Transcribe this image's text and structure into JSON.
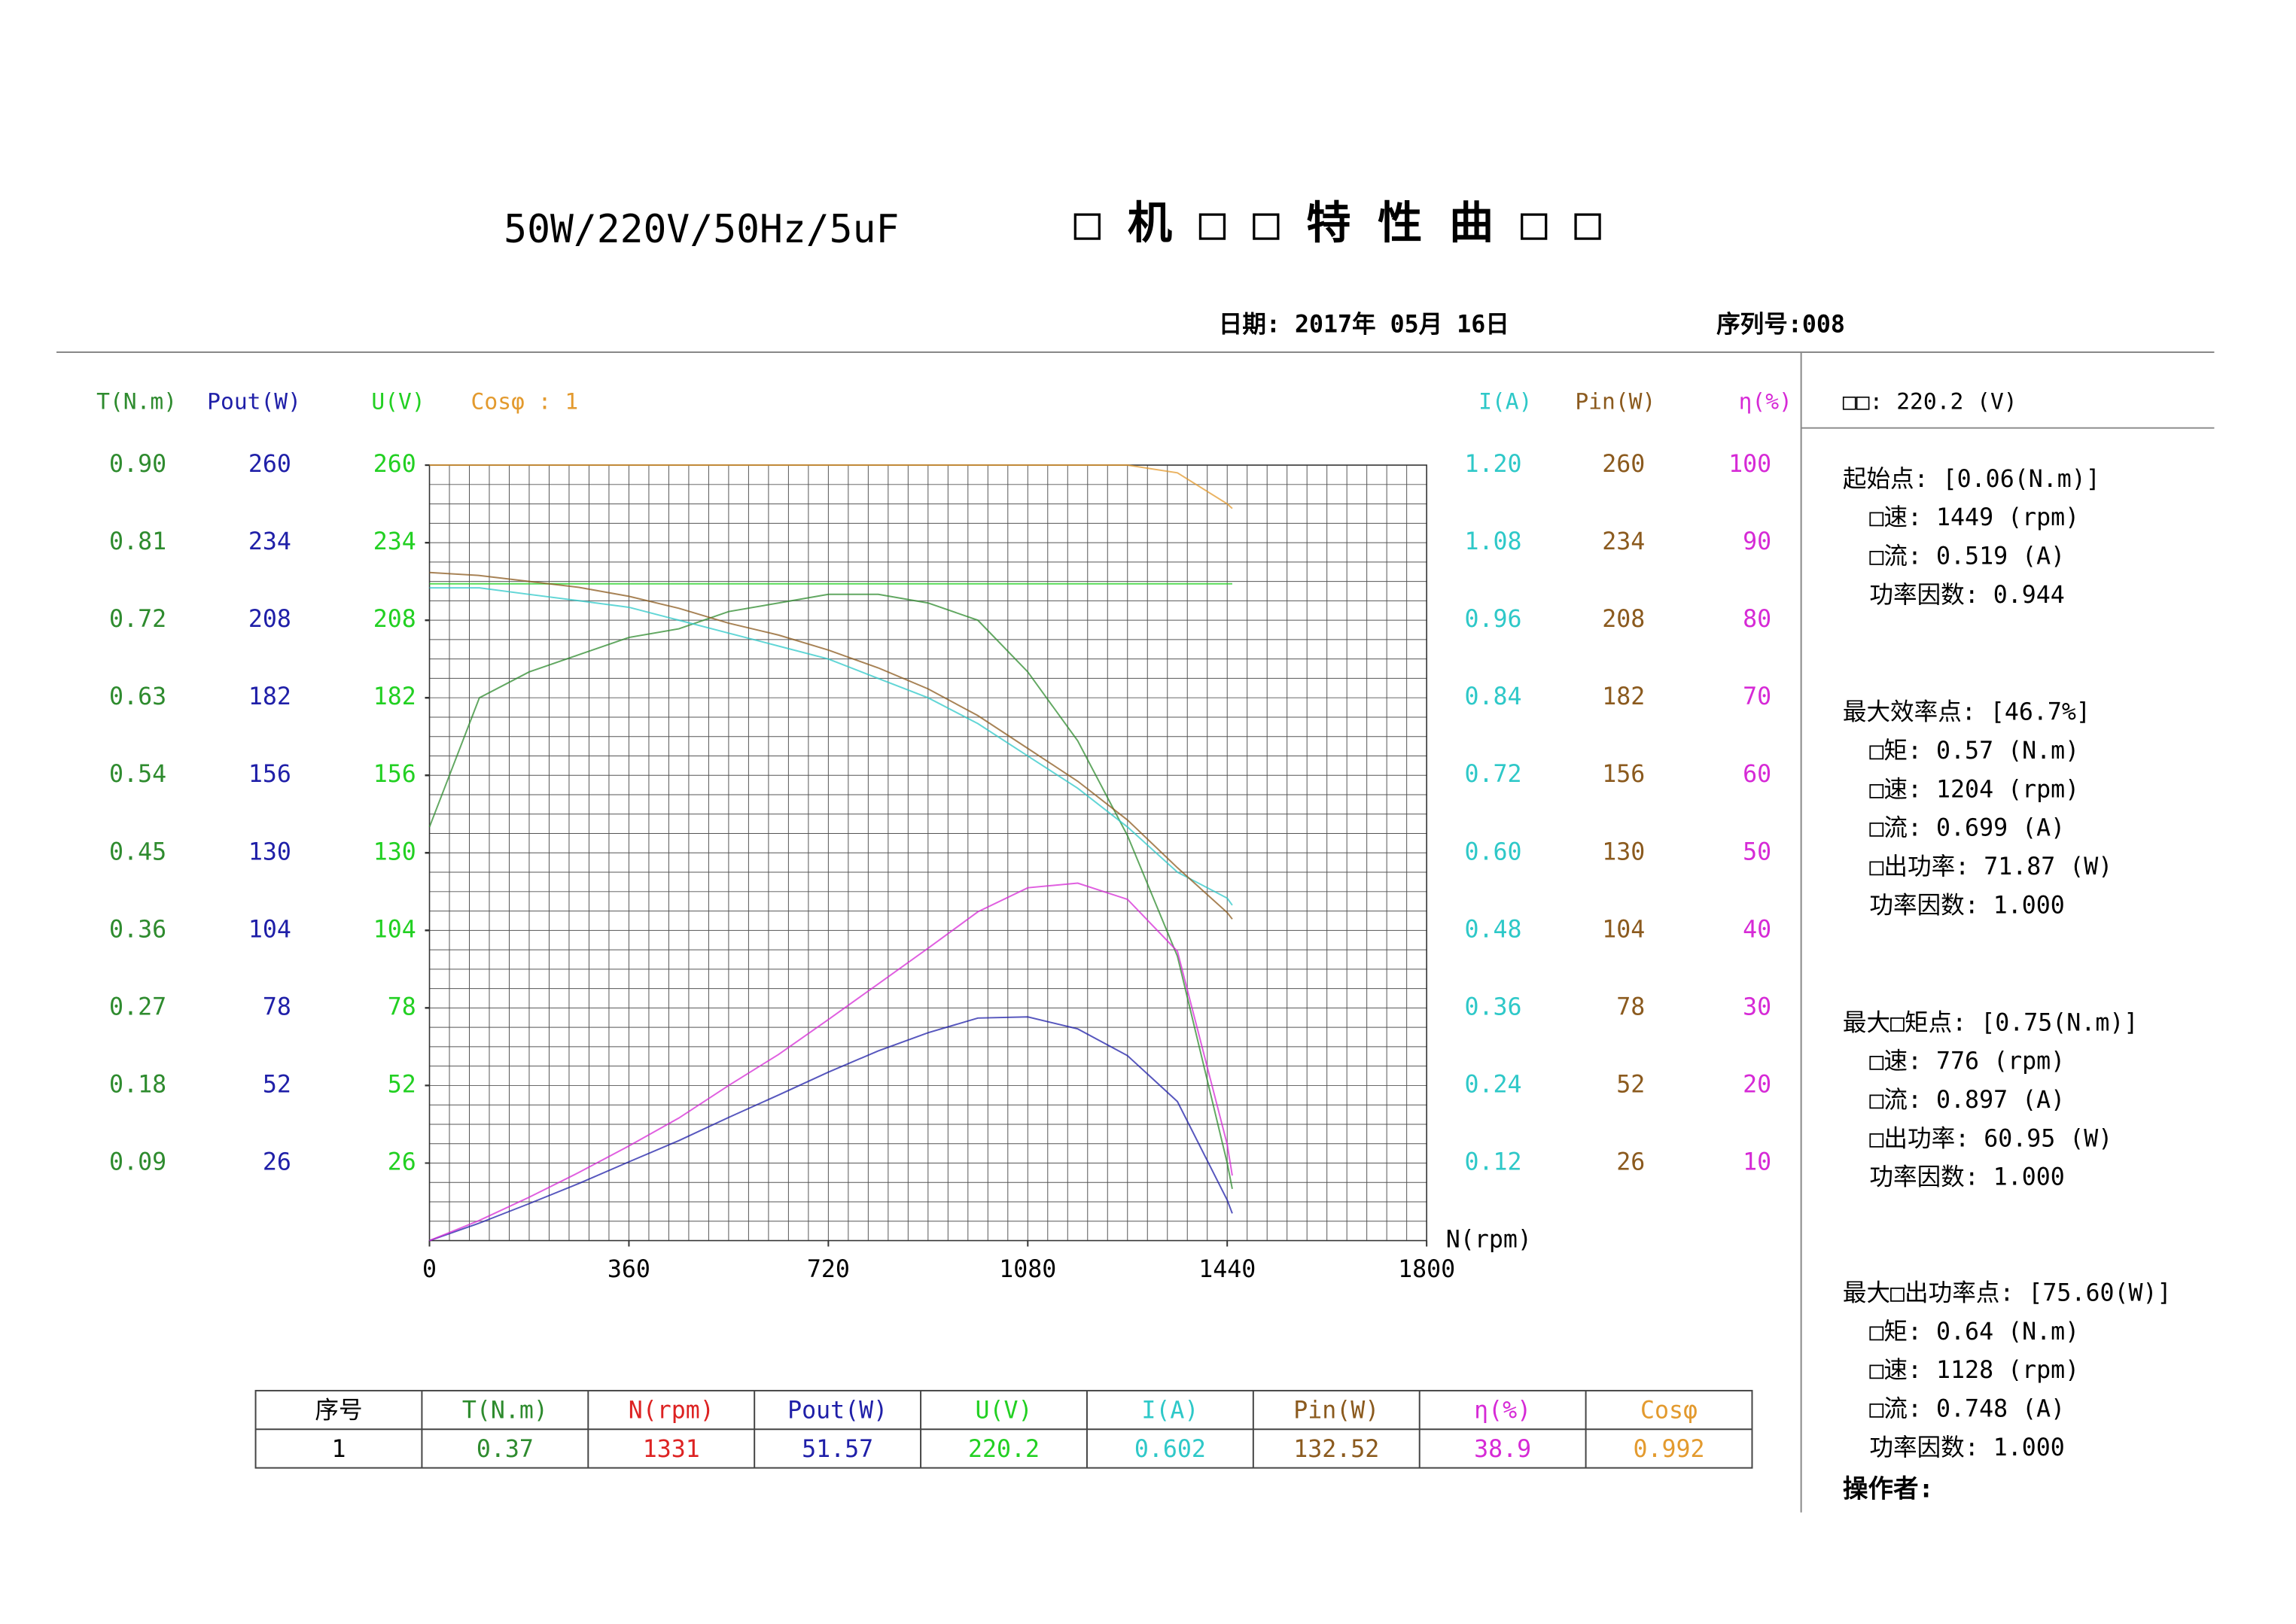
{
  "header": {
    "title": "50W/220V/50Hz/5uF",
    "title_cn": "□ 机 □ □ 特 性 曲 □ □",
    "date": "日期: 2017年 05月 16日",
    "serial": "序列号:008"
  },
  "chart_data": {
    "type": "line",
    "x": [
      0,
      90,
      180,
      270,
      360,
      450,
      540,
      630,
      720,
      810,
      900,
      990,
      1080,
      1170,
      1260,
      1350,
      1440,
      1449
    ],
    "x_label": "N(rpm)",
    "xlim": [
      0,
      1800
    ],
    "xticks": [
      0,
      360,
      720,
      1080,
      1440,
      1800
    ],
    "grid": {
      "x_divisions": 50,
      "y_divisions": 40
    },
    "series": [
      {
        "name": "T(N.m)",
        "color": "#2e8b2e",
        "ylim": [
          0,
          0.9
        ],
        "yticks": [
          0.09,
          0.18,
          0.27,
          0.36,
          0.45,
          0.54,
          0.63,
          0.72,
          0.81,
          {
            "value": 0.9,
            "label": "0.90"
          }
        ],
        "values": [
          0.48,
          0.63,
          0.66,
          0.68,
          0.7,
          0.71,
          0.73,
          0.74,
          0.75,
          0.75,
          0.74,
          0.72,
          0.66,
          0.58,
          0.47,
          0.33,
          0.09,
          0.06
        ]
      },
      {
        "name": "Pout(W)",
        "color": "#1f1fa8",
        "ylim": [
          0,
          260
        ],
        "yticks": [
          26,
          52,
          78,
          104,
          130,
          156,
          182,
          208,
          234,
          260
        ],
        "values": [
          0,
          5.9,
          12.4,
          19.2,
          26.4,
          33.5,
          41.3,
          48.8,
          56.5,
          63.6,
          69.7,
          74.6,
          75.0,
          71.0,
          62.0,
          46.6,
          13.6,
          9.1
        ]
      },
      {
        "name": "U(V)",
        "color": "#22d022",
        "ylim": [
          0,
          260
        ],
        "yticks": [
          26,
          52,
          78,
          104,
          130,
          156,
          182,
          208,
          234,
          260
        ],
        "values": [
          220.2,
          220.2,
          220.2,
          220.2,
          220.2,
          220.2,
          220.2,
          220.2,
          220.2,
          220.2,
          220.2,
          220.2,
          220.2,
          220.2,
          220.2,
          220.2,
          220.2,
          220.2
        ]
      },
      {
        "name": "Cosφ : 1",
        "color": "#e39a2e",
        "ylim": [
          0,
          1
        ],
        "yticks": [],
        "values": [
          1.0,
          1.0,
          1.0,
          1.0,
          1.0,
          1.0,
          1.0,
          1.0,
          1.0,
          1.0,
          1.0,
          1.0,
          1.0,
          1.0,
          1.0,
          0.99,
          0.95,
          0.944
        ]
      },
      {
        "name": "I(A)",
        "color": "#2ec8c8",
        "ylim": [
          0,
          1.2
        ],
        "yticks": [
          0.12,
          0.24,
          0.36,
          0.48,
          {
            "value": 0.6,
            "label": "0.60"
          },
          0.72,
          0.84,
          0.96,
          1.08,
          {
            "value": 1.2,
            "label": "1.20"
          }
        ],
        "values": [
          1.01,
          1.01,
          1.0,
          0.99,
          0.98,
          0.96,
          0.94,
          0.92,
          0.9,
          0.87,
          0.84,
          0.8,
          0.75,
          0.7,
          0.64,
          0.57,
          0.53,
          0.519
        ]
      },
      {
        "name": "Pin(W)",
        "color": "#8b5a1e",
        "ylim": [
          0,
          260
        ],
        "yticks": [
          26,
          52,
          78,
          104,
          130,
          156,
          182,
          208,
          234,
          260
        ],
        "values": [
          224,
          223,
          221,
          219,
          216,
          212,
          207,
          203,
          198,
          192,
          185,
          176,
          165,
          154,
          141,
          125,
          110,
          107.8
        ]
      },
      {
        "name": "η(%)",
        "color": "#d62ad6",
        "ylim": [
          0,
          100
        ],
        "yticks": [
          10,
          20,
          30,
          40,
          50,
          60,
          70,
          80,
          90,
          100
        ],
        "values": [
          0,
          2.6,
          5.6,
          8.8,
          12.2,
          15.8,
          20.0,
          24.0,
          28.5,
          33.1,
          37.7,
          42.4,
          45.5,
          46.1,
          44.0,
          37.3,
          12.4,
          8.4
        ]
      }
    ]
  },
  "table": {
    "header": [
      "序号",
      "T(N.m)",
      "N(rpm)",
      "Pout(W)",
      "U(V)",
      "I(A)",
      "Pin(W)",
      "η(%)",
      "Cosφ"
    ],
    "rows": [
      [
        "1",
        "0.37",
        "1331",
        "51.57",
        "220.2",
        "0.602",
        "132.52",
        "38.9",
        "0.992"
      ]
    ]
  },
  "side": {
    "voltage": "□□:   220.2 (V)",
    "sections": [
      {
        "title": "起始点: [0.06(N.m)]",
        "lines": [
          "□速: 1449 (rpm)",
          "□流: 0.519 (A)",
          "功率因数: 0.944"
        ]
      },
      {
        "title": "最大效率点: [46.7%]",
        "lines": [
          "□矩: 0.57 (N.m)",
          "□速: 1204 (rpm)",
          "□流: 0.699 (A)",
          "□出功率: 71.87 (W)",
          "功率因数: 1.000"
        ]
      },
      {
        "title": "最大□矩点: [0.75(N.m)]",
        "lines": [
          "□速: 776 (rpm)",
          "□流: 0.897 (A)",
          "□出功率: 60.95 (W)",
          "功率因数: 1.000"
        ]
      },
      {
        "title": "最大□出功率点: [75.60(W)]",
        "lines": [
          "□矩: 0.64 (N.m)",
          "□速: 1128 (rpm)",
          "□流: 0.748 (A)",
          "功率因数: 1.000"
        ]
      }
    ],
    "operator": "操作者:"
  }
}
